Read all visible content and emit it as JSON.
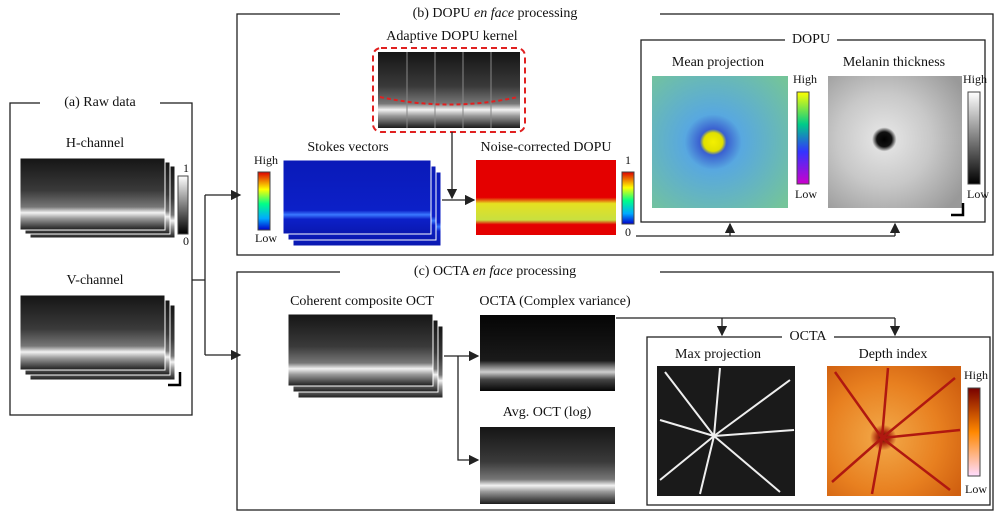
{
  "panel_a": {
    "title": "(a) Raw data",
    "h_channel": "H-channel",
    "v_channel": "V-channel",
    "colorbar": {
      "max": "1",
      "min": "0"
    }
  },
  "panel_b": {
    "title": {
      "prefix": "(b) DOPU",
      "italic": "en face",
      "suffix": "processing"
    },
    "kernel": "Adaptive DOPU kernel",
    "stokes": "Stokes vectors",
    "stokes_colorbar": {
      "max": "High",
      "min": "Low"
    },
    "noise_corrected": "Noise-corrected DOPU",
    "noise_colorbar": {
      "max": "1",
      "min": "0"
    },
    "dopu": {
      "title": "DOPU",
      "mean": "Mean projection",
      "mean_colorbar": {
        "max": "High",
        "min": "Low"
      },
      "melanin": "Melanin thickness",
      "melanin_colorbar": {
        "max": "High",
        "min": "Low"
      }
    }
  },
  "panel_c": {
    "title": {
      "prefix": "(c) OCTA",
      "italic": "en face",
      "suffix": "processing"
    },
    "composite": "Coherent composite OCT",
    "octa_variance": "OCTA (Complex variance)",
    "avg_oct": "Avg. OCT (log)",
    "octa": {
      "title": "OCTA",
      "max": "Max projection",
      "depth": "Depth index",
      "depth_colorbar": {
        "max": "High",
        "min": "Low"
      }
    }
  }
}
